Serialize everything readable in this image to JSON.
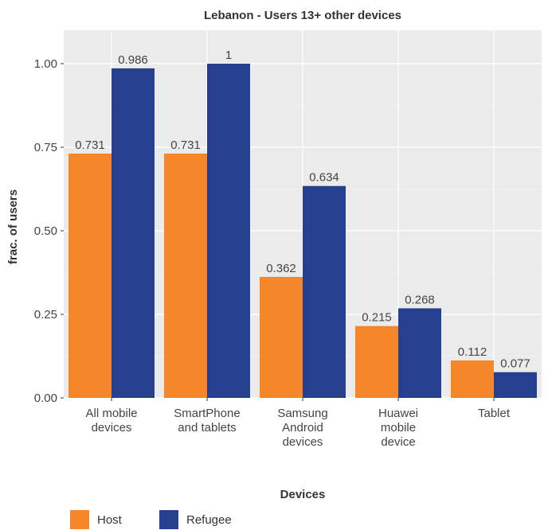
{
  "chart_data": {
    "type": "bar",
    "title": "Lebanon - Users 13+ other devices",
    "xlabel": "Devices",
    "ylabel": "frac. of users",
    "ylim": [
      0,
      1.1
    ],
    "yticks": [
      0,
      0.25,
      0.5,
      0.75,
      1.0
    ],
    "ytick_labels": [
      "0.00",
      "0.25",
      "0.50",
      "0.75",
      "1.00"
    ],
    "grid": true,
    "legend_position": "bottom-left",
    "categories": [
      [
        "All mobile",
        "devices"
      ],
      [
        "SmartPhone",
        "and tablets"
      ],
      [
        "Samsung",
        "Android",
        "devices"
      ],
      [
        "Huawei",
        "mobile",
        "device"
      ],
      [
        "Tablet"
      ]
    ],
    "series": [
      {
        "name": "Host",
        "color": "#F5862A",
        "values": [
          0.731,
          0.731,
          0.362,
          0.215,
          0.112
        ],
        "labels": [
          "0.731",
          "0.731",
          "0.362",
          "0.215",
          "0.112"
        ]
      },
      {
        "name": "Refugee",
        "color": "#263F8E",
        "values": [
          0.986,
          1.0,
          0.634,
          0.268,
          0.077
        ],
        "labels": [
          "0.986",
          "1",
          "0.634",
          "0.268",
          "0.077"
        ]
      }
    ]
  }
}
